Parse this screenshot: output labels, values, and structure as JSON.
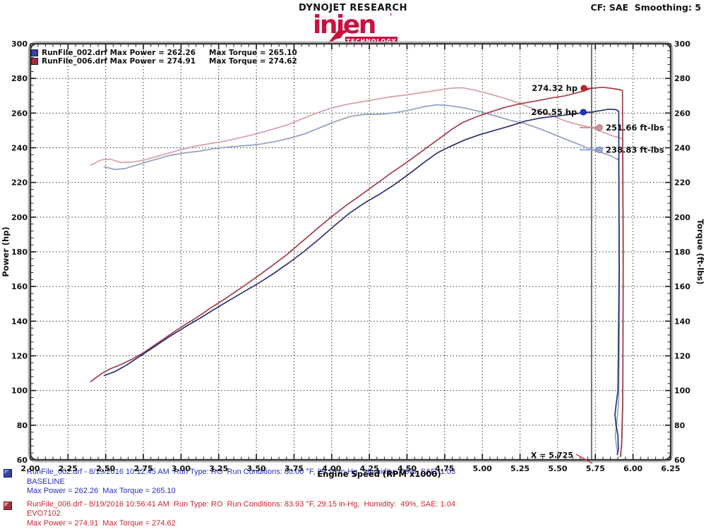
{
  "header": {
    "brand": "DYNOJET RESEARCH",
    "correction": "CF: SAE  Smoothing: 5",
    "logo": {
      "word": "injen",
      "sub": "TECHNOLOGY",
      "color": "#c81341"
    }
  },
  "legend": [
    {
      "file_and_power": "RunFile_002.drf Max Power = 262.26",
      "torque": "Max Torque = 265.10",
      "color": "#3742a6"
    },
    {
      "file_and_power": "RunFile_006.drf Max Power = 274.91",
      "torque": "Max Torque = 274.62",
      "color": "#a72f3c"
    }
  ],
  "chart_data": {
    "type": "line",
    "xlabel": "Engine Speed (RPM x1000)",
    "ylabel_left": "Power (hp)",
    "ylabel_right": "Torque (ft-lbs)",
    "xlim": [
      2.0,
      6.25
    ],
    "ylim": [
      60,
      300
    ],
    "x_ticks": [
      "2.00",
      "2.25",
      "2.50",
      "2.75",
      "3.00",
      "3.25",
      "3.50",
      "3.75",
      "4.00",
      "4.25",
      "4.50",
      "4.75",
      "5.00",
      "5.25",
      "5.50",
      "5.75",
      "6.00",
      "6.25"
    ],
    "y_ticks": [
      "60",
      "80",
      "100",
      "120",
      "140",
      "160",
      "180",
      "200",
      "220",
      "240",
      "260",
      "280",
      "300"
    ],
    "x_minor_step": 0.05,
    "y_minor_step": 4,
    "grid": {
      "x_step": 0.25,
      "y_step": 20,
      "style": "dotted",
      "color": "#333333"
    },
    "cursor": {
      "x": 5.725,
      "label": "X = 5.725",
      "pointer_color": "#cc3340"
    },
    "series": [
      {
        "name": "runfile-006-torque",
        "unit": "ft-lbs",
        "color": "#d69aa0",
        "points": [
          [
            2.4,
            230
          ],
          [
            2.47,
            233
          ],
          [
            2.53,
            233.5
          ],
          [
            2.6,
            231.5
          ],
          [
            2.68,
            231.8
          ],
          [
            2.76,
            233
          ],
          [
            2.84,
            235
          ],
          [
            2.92,
            237
          ],
          [
            3.0,
            239
          ],
          [
            3.1,
            241
          ],
          [
            3.2,
            242.5
          ],
          [
            3.3,
            244
          ],
          [
            3.4,
            246
          ],
          [
            3.5,
            248
          ],
          [
            3.6,
            250.5
          ],
          [
            3.7,
            253
          ],
          [
            3.8,
            256.5
          ],
          [
            3.9,
            260
          ],
          [
            4.0,
            263
          ],
          [
            4.1,
            265
          ],
          [
            4.2,
            266.5
          ],
          [
            4.3,
            268
          ],
          [
            4.4,
            269.5
          ],
          [
            4.5,
            270.5
          ],
          [
            4.6,
            271.8
          ],
          [
            4.7,
            273.2
          ],
          [
            4.8,
            274.4
          ],
          [
            4.87,
            274.6
          ],
          [
            4.95,
            273.2
          ],
          [
            5.05,
            271
          ],
          [
            5.15,
            268.5
          ],
          [
            5.25,
            265.5
          ],
          [
            5.35,
            262
          ],
          [
            5.45,
            258.8
          ],
          [
            5.55,
            255.5
          ],
          [
            5.65,
            253
          ],
          [
            5.725,
            251.66
          ],
          [
            5.8,
            248.9
          ],
          [
            5.86,
            247
          ],
          [
            5.91,
            245.8
          ],
          [
            5.93,
            245
          ],
          [
            5.935,
            160
          ],
          [
            5.932,
            90
          ],
          [
            5.925,
            68
          ],
          [
            5.915,
            62
          ]
        ]
      },
      {
        "name": "runfile-002-torque",
        "unit": "ft-lbs",
        "color": "#8d9bbd",
        "points": [
          [
            2.49,
            229
          ],
          [
            2.56,
            227.5
          ],
          [
            2.63,
            228
          ],
          [
            2.72,
            230.5
          ],
          [
            2.82,
            233
          ],
          [
            2.92,
            235.5
          ],
          [
            3.02,
            237
          ],
          [
            3.12,
            238
          ],
          [
            3.22,
            239.5
          ],
          [
            3.32,
            240.5
          ],
          [
            3.42,
            241.2
          ],
          [
            3.52,
            242
          ],
          [
            3.62,
            243.5
          ],
          [
            3.72,
            245.5
          ],
          [
            3.82,
            248
          ],
          [
            3.92,
            251.5
          ],
          [
            4.02,
            255
          ],
          [
            4.12,
            258
          ],
          [
            4.22,
            259.3
          ],
          [
            4.32,
            259.3
          ],
          [
            4.42,
            260.2
          ],
          [
            4.52,
            261.8
          ],
          [
            4.62,
            263.8
          ],
          [
            4.7,
            264.8
          ],
          [
            4.78,
            264.3
          ],
          [
            4.88,
            263
          ],
          [
            4.98,
            261
          ],
          [
            5.08,
            258.5
          ],
          [
            5.18,
            256
          ],
          [
            5.28,
            254
          ],
          [
            5.38,
            251
          ],
          [
            5.48,
            247.5
          ],
          [
            5.58,
            244
          ],
          [
            5.66,
            241.3
          ],
          [
            5.725,
            238.83
          ],
          [
            5.78,
            237.5
          ],
          [
            5.84,
            235.8
          ],
          [
            5.885,
            233.8
          ],
          [
            5.905,
            233
          ],
          [
            5.91,
            150
          ],
          [
            5.905,
            95
          ],
          [
            5.893,
            82
          ],
          [
            5.882,
            74
          ],
          [
            5.89,
            68
          ],
          [
            5.898,
            64
          ]
        ]
      },
      {
        "name": "runfile-006-power",
        "unit": "hp",
        "color": "#9c3542",
        "points": [
          [
            2.4,
            105.1
          ],
          [
            2.47,
            109.6
          ],
          [
            2.53,
            112.5
          ],
          [
            2.6,
            114.9
          ],
          [
            2.68,
            118.3
          ],
          [
            2.76,
            122.3
          ],
          [
            2.84,
            127.1
          ],
          [
            2.92,
            131.8
          ],
          [
            3.0,
            136.5
          ],
          [
            3.1,
            141.9
          ],
          [
            3.2,
            147.8
          ],
          [
            3.3,
            153.3
          ],
          [
            3.4,
            159.3
          ],
          [
            3.5,
            165.3
          ],
          [
            3.6,
            171.7
          ],
          [
            3.7,
            178.2
          ],
          [
            3.8,
            185.6
          ],
          [
            3.9,
            193.1
          ],
          [
            4.0,
            200.3
          ],
          [
            4.1,
            207.0
          ],
          [
            4.2,
            213.1
          ],
          [
            4.3,
            219.4
          ],
          [
            4.4,
            225.8
          ],
          [
            4.5,
            231.7
          ],
          [
            4.6,
            238.1
          ],
          [
            4.7,
            244.4
          ],
          [
            4.8,
            250.8
          ],
          [
            4.87,
            254.6
          ],
          [
            4.95,
            257.5
          ],
          [
            5.05,
            260.6
          ],
          [
            5.15,
            263.3
          ],
          [
            5.25,
            265.4
          ],
          [
            5.35,
            266.9
          ],
          [
            5.45,
            268.6
          ],
          [
            5.55,
            270.0
          ],
          [
            5.65,
            272.2
          ],
          [
            5.725,
            274.32
          ],
          [
            5.8,
            274.91
          ],
          [
            5.86,
            274.2
          ],
          [
            5.91,
            273.5
          ],
          [
            5.93,
            273
          ],
          [
            5.935,
            180
          ],
          [
            5.932,
            95
          ],
          [
            5.925,
            70
          ],
          [
            5.918,
            62
          ]
        ]
      },
      {
        "name": "runfile-002-power",
        "unit": "hp",
        "color": "#1f2766",
        "points": [
          [
            2.49,
            108.6
          ],
          [
            2.56,
            110.9
          ],
          [
            2.63,
            114.2
          ],
          [
            2.72,
            119.4
          ],
          [
            2.82,
            125.1
          ],
          [
            2.92,
            130.9
          ],
          [
            3.02,
            136.3
          ],
          [
            3.12,
            141.4
          ],
          [
            3.22,
            146.8
          ],
          [
            3.32,
            152.0
          ],
          [
            3.42,
            157.1
          ],
          [
            3.52,
            162.2
          ],
          [
            3.62,
            167.8
          ],
          [
            3.72,
            173.9
          ],
          [
            3.82,
            180.4
          ],
          [
            3.92,
            187.7
          ],
          [
            4.02,
            195.2
          ],
          [
            4.12,
            202.4
          ],
          [
            4.22,
            208.3
          ],
          [
            4.32,
            213.3
          ],
          [
            4.42,
            219.0
          ],
          [
            4.52,
            225.3
          ],
          [
            4.62,
            232.0
          ],
          [
            4.7,
            237.0
          ],
          [
            4.78,
            240.5
          ],
          [
            4.88,
            244.4
          ],
          [
            4.98,
            247.5
          ],
          [
            5.08,
            250.0
          ],
          [
            5.18,
            252.5
          ],
          [
            5.28,
            255.3
          ],
          [
            5.38,
            257.1
          ],
          [
            5.48,
            258.2
          ],
          [
            5.58,
            259.2
          ],
          [
            5.66,
            260.1
          ],
          [
            5.725,
            260.55
          ],
          [
            5.78,
            261.4
          ],
          [
            5.84,
            262.26
          ],
          [
            5.885,
            262.0
          ],
          [
            5.905,
            261
          ],
          [
            5.908,
            170
          ],
          [
            5.9,
            100
          ],
          [
            5.888,
            92
          ],
          [
            5.88,
            86
          ],
          [
            5.888,
            80
          ],
          [
            5.9,
            74
          ],
          [
            5.903,
            66
          ],
          [
            5.895,
            63
          ]
        ]
      }
    ],
    "markers": [
      {
        "text": "274.32 hp",
        "x": 5.674,
        "y": 274.32,
        "color": "#c32031",
        "side": "left"
      },
      {
        "text": "260.55 hp",
        "x": 5.67,
        "y": 260.55,
        "color": "#2733bd",
        "side": "left"
      },
      {
        "text": "251.66 ft-lbs",
        "x": 5.777,
        "y": 251.66,
        "color": "#cf9097",
        "side": "right"
      },
      {
        "text": "238.83 ft-lbs",
        "x": 5.777,
        "y": 238.83,
        "color": "#92aadd",
        "side": "right"
      }
    ]
  },
  "footer": {
    "runs": [
      {
        "line1": "RunFile_002.drf - 8/19/2016 10:12:45 AM  Run Type: RO  Run Conditions: 80.00 °F, 29.18 in-Hg,  Humidity:  59%, SAE: 1.03",
        "line2": "BASELINE",
        "line3": "Max Power = 262.26  Max Torque = 265.10"
      },
      {
        "line1": "RunFile_006.drf - 8/19/2016 10:56:41 AM  Run Type: RO  Run Conditions: 83.93 °F, 29.15 in-Hg,  Humidity:  49%, SAE: 1.04",
        "line2": "EVO7102",
        "line3": "Max Power = 274.91  Max Torque = 274.62"
      }
    ]
  }
}
